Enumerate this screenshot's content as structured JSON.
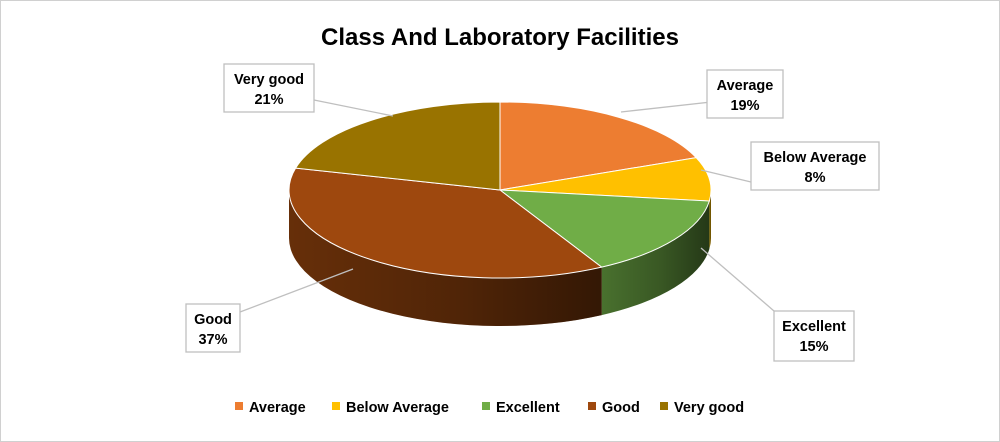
{
  "chart_data": {
    "type": "pie",
    "style": "3d",
    "title": "Class And Laboratory Facilities",
    "legend_position": "bottom",
    "categories": [
      "Average",
      "Below Average",
      "Excellent",
      "Good",
      "Very good"
    ],
    "values": [
      19,
      8,
      15,
      37,
      21
    ],
    "value_labels": [
      "19%",
      "8%",
      "15%",
      "37%",
      "21%"
    ],
    "colors": [
      "#ED7D31",
      "#FFC000",
      "#70AD47",
      "#9E480E",
      "#997300"
    ]
  }
}
